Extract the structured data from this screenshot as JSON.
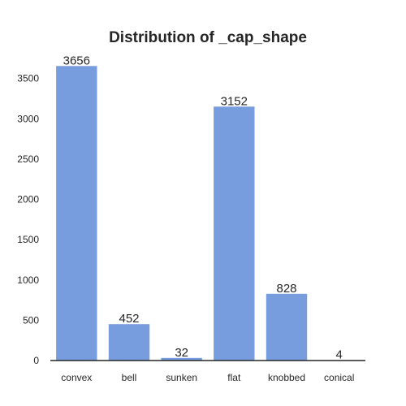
{
  "chart_data": {
    "type": "bar",
    "title": "Distribution of _cap_shape",
    "xlabel": "",
    "ylabel": "",
    "categories": [
      "convex",
      "bell",
      "sunken",
      "flat",
      "knobbed",
      "conical"
    ],
    "values": [
      3656,
      452,
      32,
      3152,
      828,
      4
    ],
    "ylim": [
      0,
      3840
    ],
    "yticks": [
      0,
      500,
      1000,
      1500,
      2000,
      2500,
      3000,
      3500
    ],
    "bar_color": "#779ddf",
    "grid": false,
    "data_labels": true
  }
}
